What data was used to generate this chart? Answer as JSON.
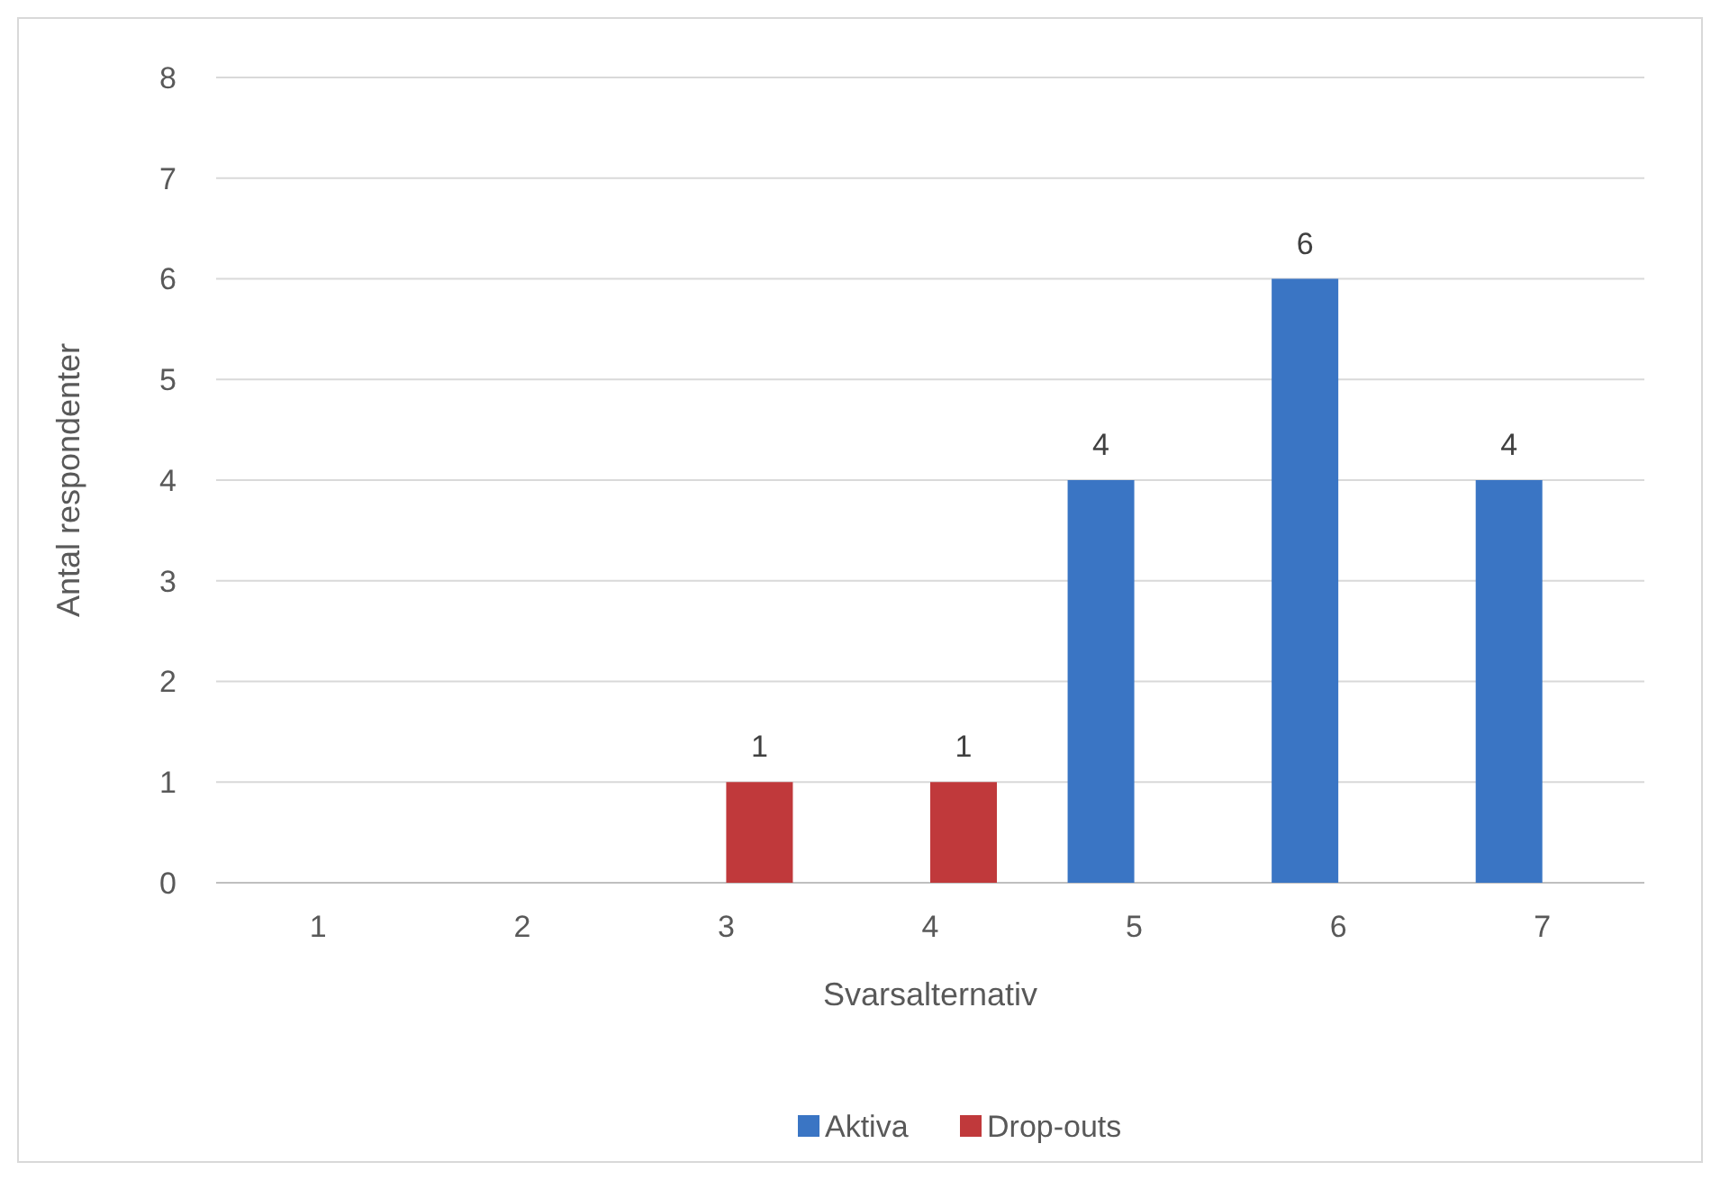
{
  "chart_data": {
    "type": "bar",
    "xlabel": "Svarsalternativ",
    "ylabel": "Antal respondenter",
    "categories": [
      "1",
      "2",
      "3",
      "4",
      "5",
      "6",
      "7"
    ],
    "series": [
      {
        "name": "Aktiva",
        "color": "#3a75c4",
        "values": [
          0,
          0,
          0,
          0,
          4,
          6,
          4
        ],
        "value_labels": [
          null,
          null,
          null,
          null,
          "4",
          "6",
          "4"
        ]
      },
      {
        "name": "Drop-outs",
        "color": "#c0393b",
        "values": [
          0,
          0,
          1,
          1,
          0,
          0,
          0
        ],
        "value_labels": [
          null,
          null,
          "1",
          "1",
          null,
          null,
          null
        ]
      }
    ],
    "ylim": [
      0,
      8
    ],
    "yticks": [
      0,
      1,
      2,
      3,
      4,
      5,
      6,
      7,
      8
    ],
    "grid": "y",
    "legend": "bottom"
  }
}
